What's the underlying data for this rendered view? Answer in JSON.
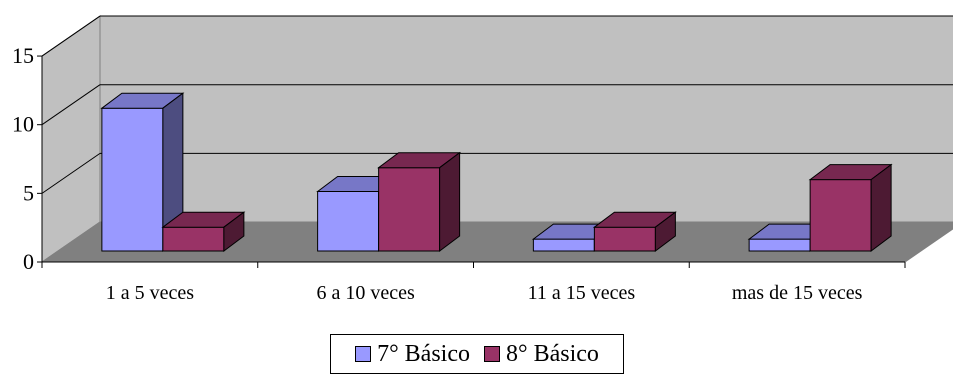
{
  "chart_data": {
    "type": "bar",
    "title": "",
    "xlabel": "",
    "ylabel": "",
    "ylim": [
      0,
      15
    ],
    "yticks": [
      "0",
      "5",
      "10",
      "15"
    ],
    "categories": [
      "1 a 5 veces",
      "6 a 10 veces",
      "11 a 15 veces",
      "mas de 15 veces"
    ],
    "series": [
      {
        "name": "7° Básico",
        "values": [
          12,
          5,
          1,
          1
        ],
        "color": "#9999ff"
      },
      {
        "name": "8° Básico",
        "values": [
          2,
          7,
          2,
          6
        ],
        "color": "#993366"
      }
    ],
    "grid": true,
    "legend_position": "bottom",
    "style": "3d-clustered-column"
  }
}
